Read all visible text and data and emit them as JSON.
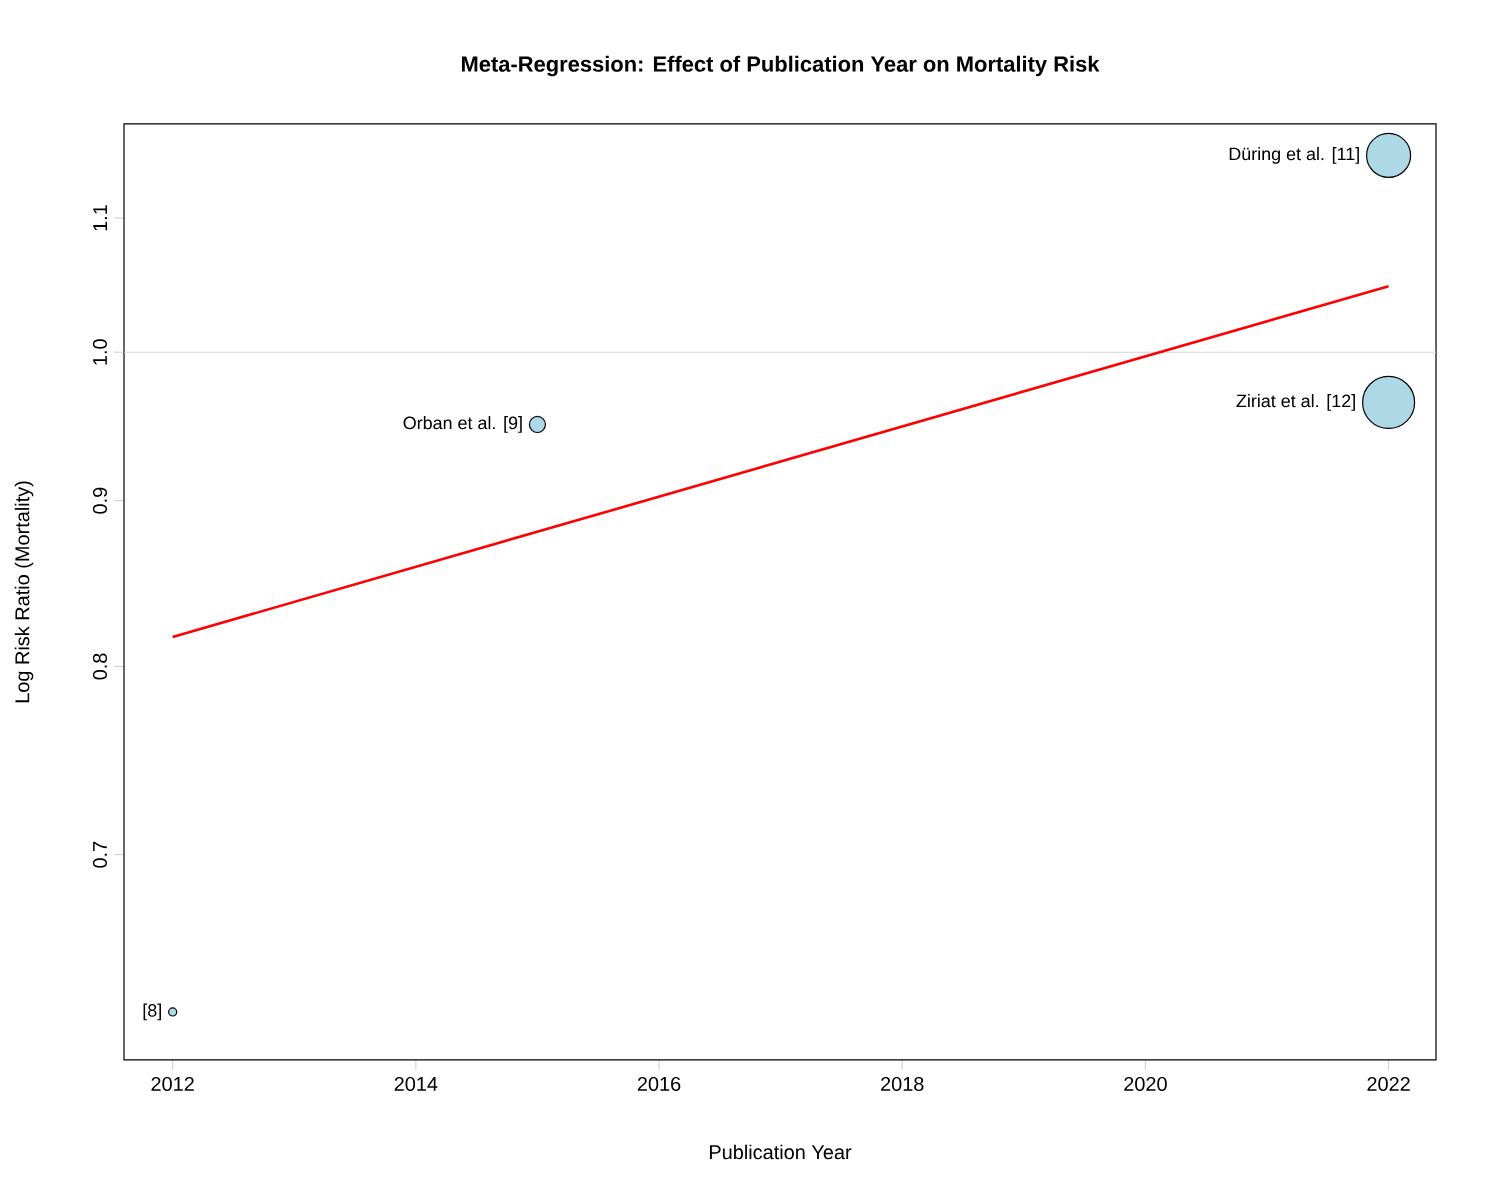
{
  "chart_data": {
    "type": "bubble",
    "title": "Meta-Regression: Effect of Publication Year on Mortality Risk",
    "xlabel": "Publication Year",
    "ylabel": "Log Risk Ratio (Mortality)",
    "log": "y",
    "xlim": [
      2011.6,
      2022.39
    ],
    "ylim": [
      0.605,
      1.176
    ],
    "xticks": [
      2012,
      2014,
      2016,
      2018,
      2020,
      2022
    ],
    "yticks": [
      0.7,
      0.8,
      0.9,
      {
        "value": 1.0,
        "label": "1.0"
      },
      1.1
    ],
    "series": [
      {
        "x": [
          2012,
          2015,
          2022,
          2022
        ],
        "values": [
          0.626,
          0.95,
          1.15,
          0.965
        ],
        "sizes": [
          0.024,
          0.095,
          0.716,
          1
        ],
        "color": "#add8e6"
      },
      {
        "type": "line",
        "x": [
          2012,
          2022
        ],
        "values": [
          0.817,
          1.048
        ],
        "color": "#ff0000"
      }
    ],
    "ref_lines": [
      {
        "axis": "y",
        "value": 1.0,
        "color": "#d3d3d3"
      }
    ],
    "annotations": [
      {
        "text": "[8]",
        "x": 2012,
        "y": 0.626
      },
      {
        "text": "Orban et al. [9]",
        "x": 2015,
        "y": 0.95
      },
      {
        "text": "Düring et al. [11]",
        "x": 2022,
        "y": 1.15
      },
      {
        "text": "Ziriat et al. [12]",
        "x": 2022,
        "y": 0.965
      }
    ]
  }
}
